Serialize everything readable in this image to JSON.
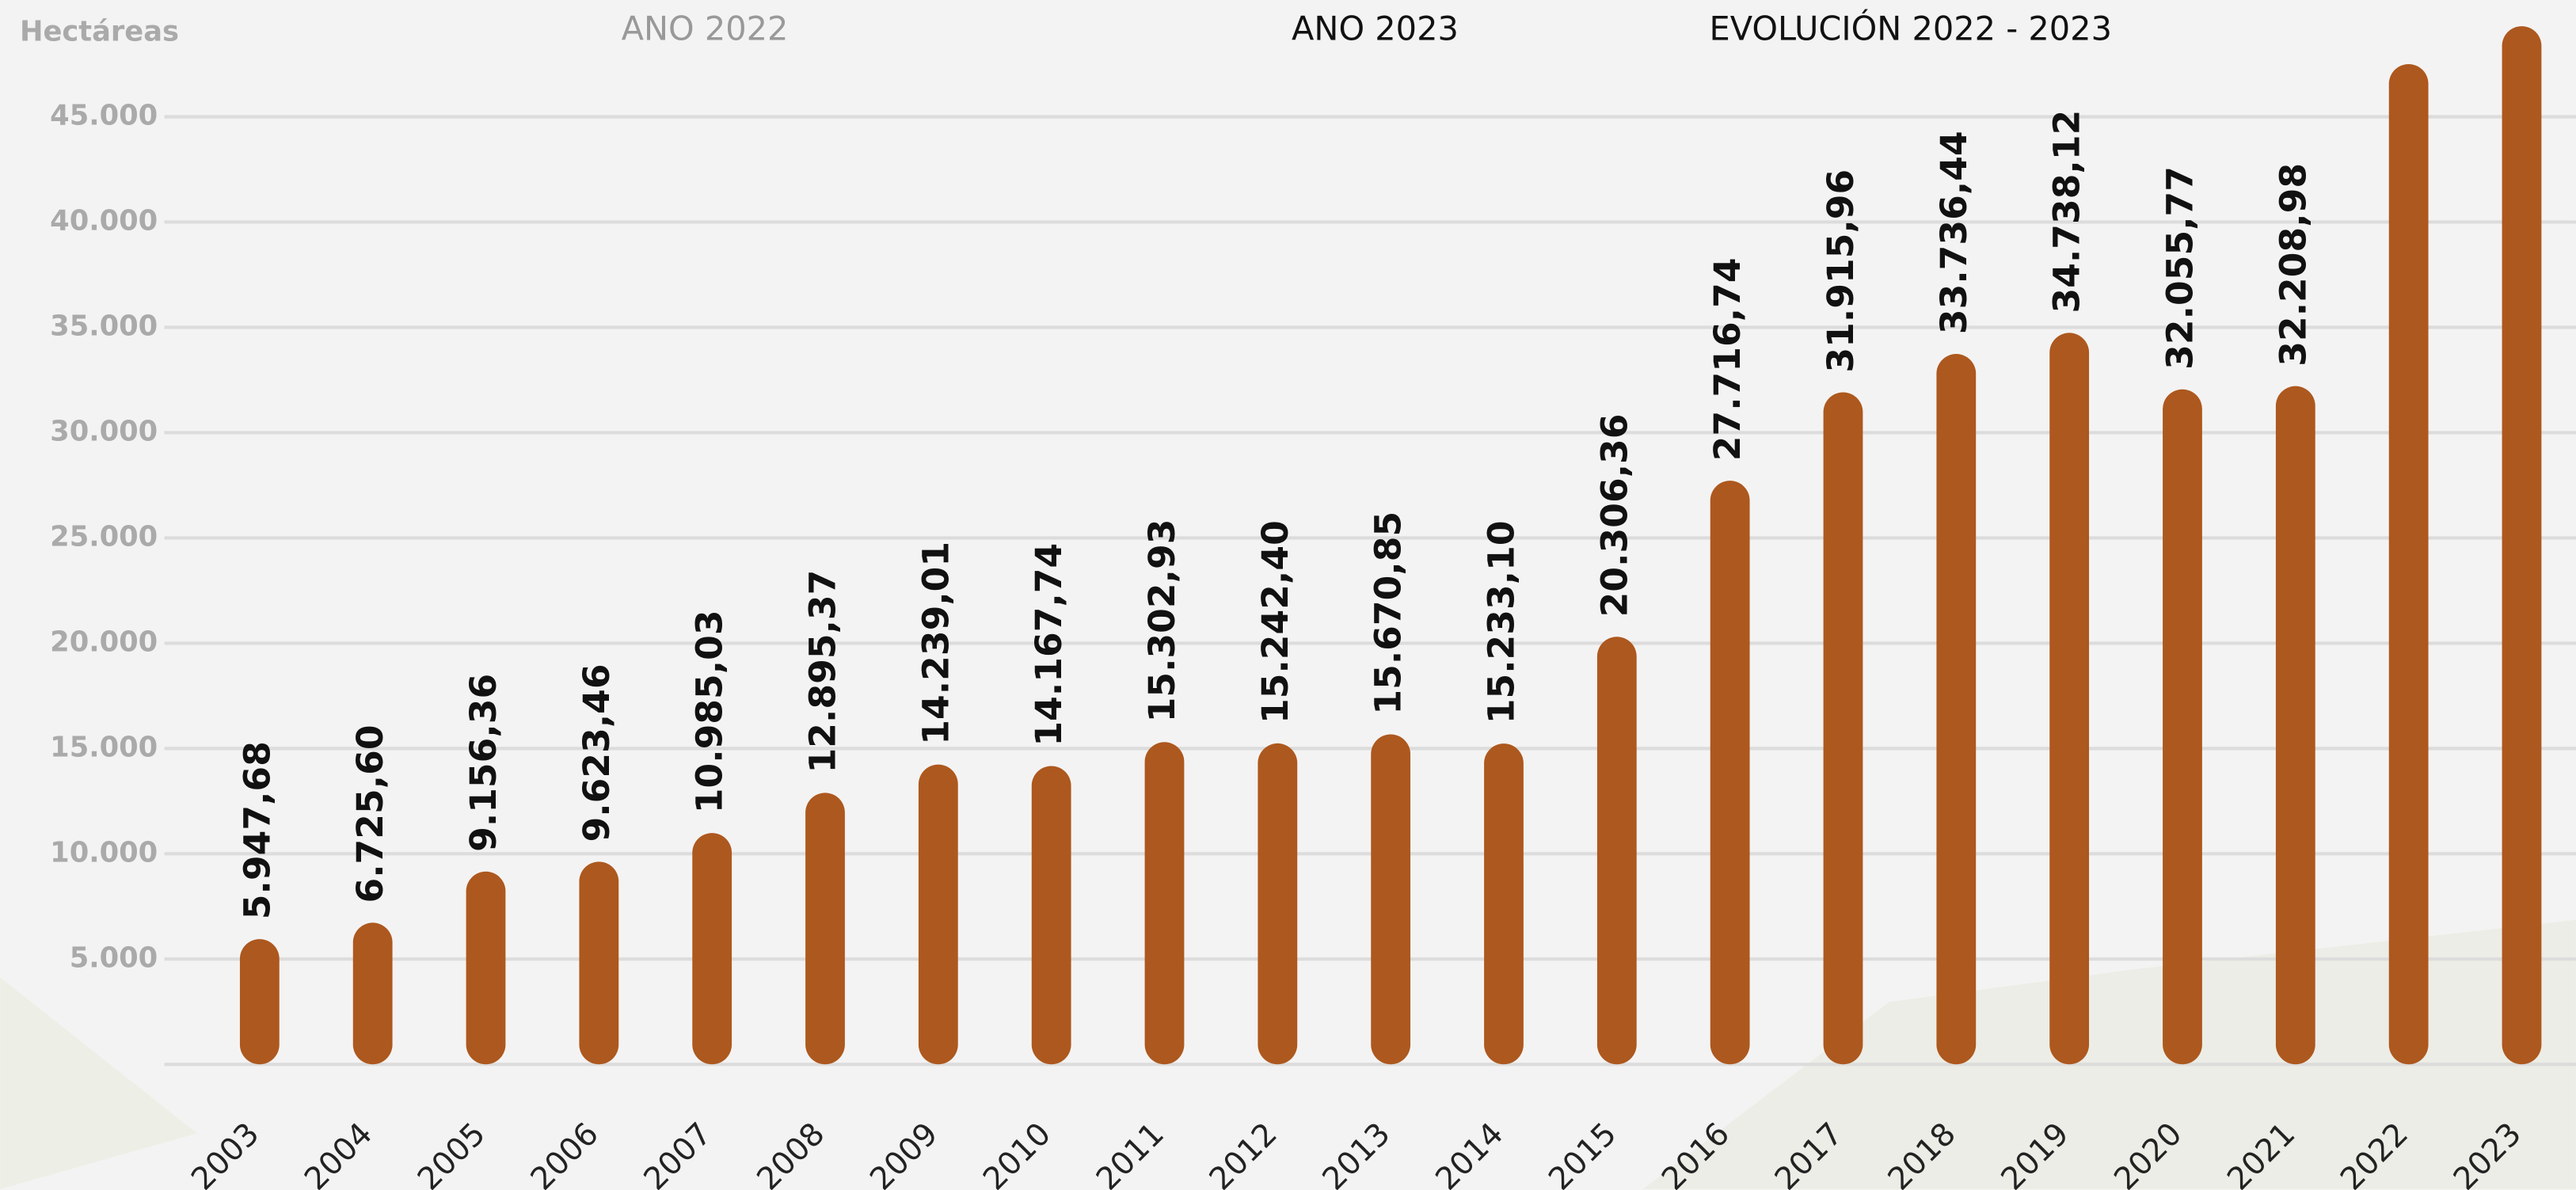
{
  "chart_data": {
    "type": "bar",
    "tabs": [
      "ANO 2022",
      "ANO 2023",
      "EVOLUCIÓN 2022 - 2023"
    ],
    "y_label": "Hectáreas",
    "categories": [
      "2003",
      "2004",
      "2005",
      "2006",
      "2007",
      "2008",
      "2009",
      "2010",
      "2011",
      "2012",
      "2013",
      "2014",
      "2015",
      "2016",
      "2017",
      "2018",
      "2019",
      "2020",
      "2021",
      "2022",
      "2023"
    ],
    "values": [
      5947.68,
      6725.6,
      9156.36,
      9623.46,
      10985.03,
      12895.37,
      14239.01,
      14167.74,
      15302.93,
      15242.4,
      15670.85,
      15233.1,
      20306.36,
      27716.74,
      31915.96,
      33736.44,
      34738.12,
      32055.77,
      32208.98,
      47500,
      49300
    ],
    "value_labels": [
      "5.947,68",
      "6.725,60",
      "9.156,36",
      "9.623,46",
      "10.985,03",
      "12.895,37",
      "14.239,01",
      "14.167,74",
      "15.302,93",
      "15.242,40",
      "15.670,85",
      "15.233,10",
      "20.306,36",
      "27.716,74",
      "31.915,96",
      "33.736,44",
      "34.738,12",
      "32.055,77",
      "32.208,98",
      null,
      null
    ],
    "color": "#ad581e",
    "ylim": [
      0,
      50000
    ],
    "yticks": [
      {
        "value": 5000,
        "label": "5.000"
      },
      {
        "value": 10000,
        "label": "10.000"
      },
      {
        "value": 15000,
        "label": "15.000"
      },
      {
        "value": 20000,
        "label": "20.000"
      },
      {
        "value": 25000,
        "label": "25.000"
      },
      {
        "value": 30000,
        "label": "30.000"
      },
      {
        "value": 35000,
        "label": "35.000"
      },
      {
        "value": 40000,
        "label": "40.000"
      },
      {
        "value": 45000,
        "label": "45.000"
      }
    ],
    "grid": true
  }
}
